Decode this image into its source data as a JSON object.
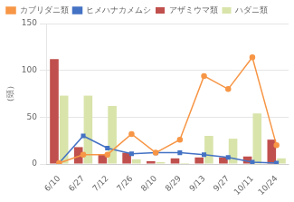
{
  "chart_data": {
    "type": "bar",
    "ylabel": "（頭）",
    "categories": [
      "6/10",
      "6/27",
      "7/12",
      "7/26",
      "8/10",
      "8/29",
      "9/13",
      "9/27",
      "10/11",
      "10/24"
    ],
    "series": [
      {
        "name": "アザミウマ類",
        "type": "bar",
        "color": "#c0504d",
        "values": [
          112,
          18,
          10,
          12,
          3,
          6,
          7,
          7,
          8,
          26
        ]
      },
      {
        "name": "ハダニ類",
        "type": "bar",
        "color": "#d8e4aa",
        "values": [
          73,
          73,
          62,
          5,
          2,
          1,
          30,
          27,
          54,
          6
        ]
      },
      {
        "name": "カブリダニ類",
        "type": "line",
        "color": "#f79646",
        "marker": "circle",
        "values": [
          1,
          10,
          10,
          32,
          12,
          26,
          94,
          80,
          114,
          20
        ]
      },
      {
        "name": "ヒメハナカメムシ",
        "type": "line",
        "color": "#4472c4",
        "marker": "square",
        "values": [
          1,
          30,
          17,
          11,
          12,
          12,
          10,
          7,
          2,
          1
        ]
      }
    ],
    "ylim": [
      0,
      150
    ],
    "yticks": [
      0,
      50,
      100,
      150
    ],
    "grid": true,
    "legend": "top"
  }
}
